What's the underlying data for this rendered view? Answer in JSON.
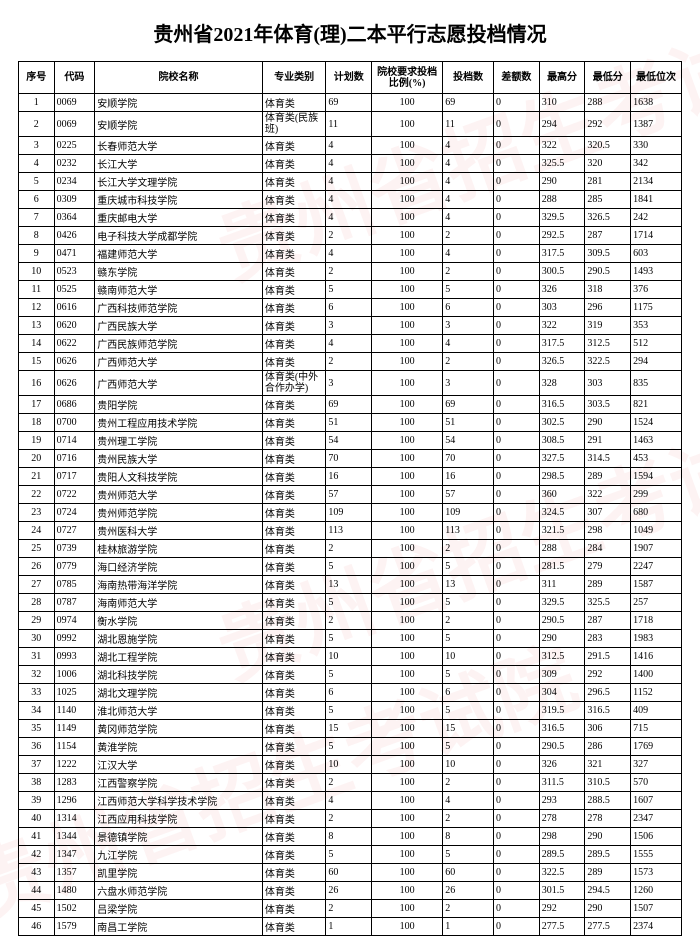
{
  "title": "贵州省2021年体育(理)二本平行志愿投档情况",
  "watermark": "贵州省招生考试院",
  "headers": {
    "seq": "序号",
    "code": "代码",
    "name": "院校名称",
    "major": "专业类别",
    "plan": "计划数",
    "ratio": "院校要求投档比例(%)",
    "file": "投档数",
    "diff": "差额数",
    "max": "最高分",
    "min": "最低分",
    "rank": "最低位次"
  },
  "rows": [
    {
      "seq": "1",
      "code": "0069",
      "name": "安顺学院",
      "major": "体育类",
      "plan": "69",
      "ratio": "100",
      "file": "69",
      "diff": "0",
      "max": "310",
      "min": "288",
      "rank": "1638"
    },
    {
      "seq": "2",
      "code": "0069",
      "name": "安顺学院",
      "major": "体育类(民族班)",
      "plan": "11",
      "ratio": "100",
      "file": "11",
      "diff": "0",
      "max": "294",
      "min": "292",
      "rank": "1387",
      "multi": true
    },
    {
      "seq": "3",
      "code": "0225",
      "name": "长春师范大学",
      "major": "体育类",
      "plan": "4",
      "ratio": "100",
      "file": "4",
      "diff": "0",
      "max": "322",
      "min": "320.5",
      "rank": "330"
    },
    {
      "seq": "4",
      "code": "0232",
      "name": "长江大学",
      "major": "体育类",
      "plan": "4",
      "ratio": "100",
      "file": "4",
      "diff": "0",
      "max": "325.5",
      "min": "320",
      "rank": "342"
    },
    {
      "seq": "5",
      "code": "0234",
      "name": "长江大学文理学院",
      "major": "体育类",
      "plan": "4",
      "ratio": "100",
      "file": "4",
      "diff": "0",
      "max": "290",
      "min": "281",
      "rank": "2134"
    },
    {
      "seq": "6",
      "code": "0309",
      "name": "重庆城市科技学院",
      "major": "体育类",
      "plan": "4",
      "ratio": "100",
      "file": "4",
      "diff": "0",
      "max": "288",
      "min": "285",
      "rank": "1841"
    },
    {
      "seq": "7",
      "code": "0364",
      "name": "重庆邮电大学",
      "major": "体育类",
      "plan": "4",
      "ratio": "100",
      "file": "4",
      "diff": "0",
      "max": "329.5",
      "min": "326.5",
      "rank": "242"
    },
    {
      "seq": "8",
      "code": "0426",
      "name": "电子科技大学成都学院",
      "major": "体育类",
      "plan": "2",
      "ratio": "100",
      "file": "2",
      "diff": "0",
      "max": "292.5",
      "min": "287",
      "rank": "1714"
    },
    {
      "seq": "9",
      "code": "0471",
      "name": "福建师范大学",
      "major": "体育类",
      "plan": "4",
      "ratio": "100",
      "file": "4",
      "diff": "0",
      "max": "317.5",
      "min": "309.5",
      "rank": "603"
    },
    {
      "seq": "10",
      "code": "0523",
      "name": "赣东学院",
      "major": "体育类",
      "plan": "2",
      "ratio": "100",
      "file": "2",
      "diff": "0",
      "max": "300.5",
      "min": "290.5",
      "rank": "1493"
    },
    {
      "seq": "11",
      "code": "0525",
      "name": "赣南师范大学",
      "major": "体育类",
      "plan": "5",
      "ratio": "100",
      "file": "5",
      "diff": "0",
      "max": "326",
      "min": "318",
      "rank": "376"
    },
    {
      "seq": "12",
      "code": "0616",
      "name": "广西科技师范学院",
      "major": "体育类",
      "plan": "6",
      "ratio": "100",
      "file": "6",
      "diff": "0",
      "max": "303",
      "min": "296",
      "rank": "1175"
    },
    {
      "seq": "13",
      "code": "0620",
      "name": "广西民族大学",
      "major": "体育类",
      "plan": "3",
      "ratio": "100",
      "file": "3",
      "diff": "0",
      "max": "322",
      "min": "319",
      "rank": "353"
    },
    {
      "seq": "14",
      "code": "0622",
      "name": "广西民族师范学院",
      "major": "体育类",
      "plan": "4",
      "ratio": "100",
      "file": "4",
      "diff": "0",
      "max": "317.5",
      "min": "312.5",
      "rank": "512"
    },
    {
      "seq": "15",
      "code": "0626",
      "name": "广西师范大学",
      "major": "体育类",
      "plan": "2",
      "ratio": "100",
      "file": "2",
      "diff": "0",
      "max": "326.5",
      "min": "322.5",
      "rank": "294"
    },
    {
      "seq": "16",
      "code": "0626",
      "name": "广西师范大学",
      "major": "体育类(中外合作办学)",
      "plan": "3",
      "ratio": "100",
      "file": "3",
      "diff": "0",
      "max": "328",
      "min": "303",
      "rank": "835",
      "multi": true
    },
    {
      "seq": "17",
      "code": "0686",
      "name": "贵阳学院",
      "major": "体育类",
      "plan": "69",
      "ratio": "100",
      "file": "69",
      "diff": "0",
      "max": "316.5",
      "min": "303.5",
      "rank": "821"
    },
    {
      "seq": "18",
      "code": "0700",
      "name": "贵州工程应用技术学院",
      "major": "体育类",
      "plan": "51",
      "ratio": "100",
      "file": "51",
      "diff": "0",
      "max": "302.5",
      "min": "290",
      "rank": "1524"
    },
    {
      "seq": "19",
      "code": "0714",
      "name": "贵州理工学院",
      "major": "体育类",
      "plan": "54",
      "ratio": "100",
      "file": "54",
      "diff": "0",
      "max": "308.5",
      "min": "291",
      "rank": "1463"
    },
    {
      "seq": "20",
      "code": "0716",
      "name": "贵州民族大学",
      "major": "体育类",
      "plan": "70",
      "ratio": "100",
      "file": "70",
      "diff": "0",
      "max": "327.5",
      "min": "314.5",
      "rank": "453"
    },
    {
      "seq": "21",
      "code": "0717",
      "name": "贵阳人文科技学院",
      "major": "体育类",
      "plan": "16",
      "ratio": "100",
      "file": "16",
      "diff": "0",
      "max": "298.5",
      "min": "289",
      "rank": "1594"
    },
    {
      "seq": "22",
      "code": "0722",
      "name": "贵州师范大学",
      "major": "体育类",
      "plan": "57",
      "ratio": "100",
      "file": "57",
      "diff": "0",
      "max": "360",
      "min": "322",
      "rank": "299"
    },
    {
      "seq": "23",
      "code": "0724",
      "name": "贵州师范学院",
      "major": "体育类",
      "plan": "109",
      "ratio": "100",
      "file": "109",
      "diff": "0",
      "max": "324.5",
      "min": "307",
      "rank": "680"
    },
    {
      "seq": "24",
      "code": "0727",
      "name": "贵州医科大学",
      "major": "体育类",
      "plan": "113",
      "ratio": "100",
      "file": "113",
      "diff": "0",
      "max": "321.5",
      "min": "298",
      "rank": "1049"
    },
    {
      "seq": "25",
      "code": "0739",
      "name": "桂林旅游学院",
      "major": "体育类",
      "plan": "2",
      "ratio": "100",
      "file": "2",
      "diff": "0",
      "max": "288",
      "min": "284",
      "rank": "1907"
    },
    {
      "seq": "26",
      "code": "0779",
      "name": "海口经济学院",
      "major": "体育类",
      "plan": "5",
      "ratio": "100",
      "file": "5",
      "diff": "0",
      "max": "281.5",
      "min": "279",
      "rank": "2247"
    },
    {
      "seq": "27",
      "code": "0785",
      "name": "海南热带海洋学院",
      "major": "体育类",
      "plan": "13",
      "ratio": "100",
      "file": "13",
      "diff": "0",
      "max": "311",
      "min": "289",
      "rank": "1587"
    },
    {
      "seq": "28",
      "code": "0787",
      "name": "海南师范大学",
      "major": "体育类",
      "plan": "5",
      "ratio": "100",
      "file": "5",
      "diff": "0",
      "max": "329.5",
      "min": "325.5",
      "rank": "257"
    },
    {
      "seq": "29",
      "code": "0974",
      "name": "衡水学院",
      "major": "体育类",
      "plan": "2",
      "ratio": "100",
      "file": "2",
      "diff": "0",
      "max": "290.5",
      "min": "287",
      "rank": "1718"
    },
    {
      "seq": "30",
      "code": "0992",
      "name": "湖北恩施学院",
      "major": "体育类",
      "plan": "5",
      "ratio": "100",
      "file": "5",
      "diff": "0",
      "max": "290",
      "min": "283",
      "rank": "1983"
    },
    {
      "seq": "31",
      "code": "0993",
      "name": "湖北工程学院",
      "major": "体育类",
      "plan": "10",
      "ratio": "100",
      "file": "10",
      "diff": "0",
      "max": "312.5",
      "min": "291.5",
      "rank": "1416"
    },
    {
      "seq": "32",
      "code": "1006",
      "name": "湖北科技学院",
      "major": "体育类",
      "plan": "5",
      "ratio": "100",
      "file": "5",
      "diff": "0",
      "max": "309",
      "min": "292",
      "rank": "1400"
    },
    {
      "seq": "33",
      "code": "1025",
      "name": "湖北文理学院",
      "major": "体育类",
      "plan": "6",
      "ratio": "100",
      "file": "6",
      "diff": "0",
      "max": "304",
      "min": "296.5",
      "rank": "1152"
    },
    {
      "seq": "34",
      "code": "1140",
      "name": "淮北师范大学",
      "major": "体育类",
      "plan": "5",
      "ratio": "100",
      "file": "5",
      "diff": "0",
      "max": "319.5",
      "min": "316.5",
      "rank": "409"
    },
    {
      "seq": "35",
      "code": "1149",
      "name": "黄冈师范学院",
      "major": "体育类",
      "plan": "15",
      "ratio": "100",
      "file": "15",
      "diff": "0",
      "max": "316.5",
      "min": "306",
      "rank": "715"
    },
    {
      "seq": "36",
      "code": "1154",
      "name": "黄淮学院",
      "major": "体育类",
      "plan": "5",
      "ratio": "100",
      "file": "5",
      "diff": "0",
      "max": "290.5",
      "min": "286",
      "rank": "1769"
    },
    {
      "seq": "37",
      "code": "1222",
      "name": "江汉大学",
      "major": "体育类",
      "plan": "10",
      "ratio": "100",
      "file": "10",
      "diff": "0",
      "max": "326",
      "min": "321",
      "rank": "327"
    },
    {
      "seq": "38",
      "code": "1283",
      "name": "江西警察学院",
      "major": "体育类",
      "plan": "2",
      "ratio": "100",
      "file": "2",
      "diff": "0",
      "max": "311.5",
      "min": "310.5",
      "rank": "570"
    },
    {
      "seq": "39",
      "code": "1296",
      "name": "江西师范大学科学技术学院",
      "major": "体育类",
      "plan": "4",
      "ratio": "100",
      "file": "4",
      "diff": "0",
      "max": "293",
      "min": "288.5",
      "rank": "1607"
    },
    {
      "seq": "40",
      "code": "1314",
      "name": "江西应用科技学院",
      "major": "体育类",
      "plan": "2",
      "ratio": "100",
      "file": "2",
      "diff": "0",
      "max": "278",
      "min": "278",
      "rank": "2347"
    },
    {
      "seq": "41",
      "code": "1344",
      "name": "景德镇学院",
      "major": "体育类",
      "plan": "8",
      "ratio": "100",
      "file": "8",
      "diff": "0",
      "max": "298",
      "min": "290",
      "rank": "1506"
    },
    {
      "seq": "42",
      "code": "1347",
      "name": "九江学院",
      "major": "体育类",
      "plan": "5",
      "ratio": "100",
      "file": "5",
      "diff": "0",
      "max": "289.5",
      "min": "289.5",
      "rank": "1555"
    },
    {
      "seq": "43",
      "code": "1357",
      "name": "凯里学院",
      "major": "体育类",
      "plan": "60",
      "ratio": "100",
      "file": "60",
      "diff": "0",
      "max": "322.5",
      "min": "289",
      "rank": "1573"
    },
    {
      "seq": "44",
      "code": "1480",
      "name": "六盘水师范学院",
      "major": "体育类",
      "plan": "26",
      "ratio": "100",
      "file": "26",
      "diff": "0",
      "max": "301.5",
      "min": "294.5",
      "rank": "1260"
    },
    {
      "seq": "45",
      "code": "1502",
      "name": "吕梁学院",
      "major": "体育类",
      "plan": "2",
      "ratio": "100",
      "file": "2",
      "diff": "0",
      "max": "292",
      "min": "290",
      "rank": "1507"
    },
    {
      "seq": "46",
      "code": "1579",
      "name": "南昌工学院",
      "major": "体育类",
      "plan": "1",
      "ratio": "100",
      "file": "1",
      "diff": "0",
      "max": "277.5",
      "min": "277.5",
      "rank": "2374"
    }
  ]
}
